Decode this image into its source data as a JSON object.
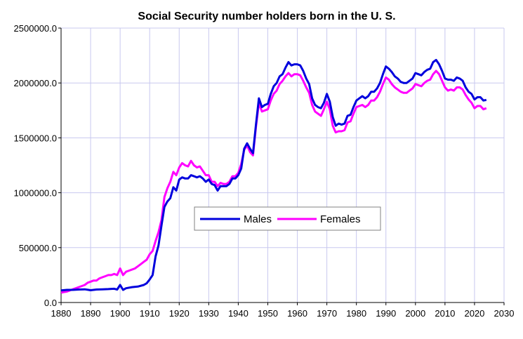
{
  "chart_data": {
    "type": "line",
    "title": "Social Security number holders born in the U. S.",
    "xlabel": "",
    "ylabel": "",
    "xlim": [
      1880,
      2030
    ],
    "ylim": [
      0,
      2500000
    ],
    "xticks": [
      1880,
      1890,
      1900,
      1910,
      1920,
      1930,
      1940,
      1950,
      1960,
      1970,
      1980,
      1990,
      2000,
      2010,
      2020,
      2030
    ],
    "yticks": [
      0,
      500000,
      1000000,
      1500000,
      2000000,
      2500000
    ],
    "ytick_labels": [
      "0.0",
      "500000.0",
      "1000000.0",
      "1500000.0",
      "2000000.0",
      "2500000.0"
    ],
    "grid": true,
    "legend_position": "center-right",
    "series": [
      {
        "name": "Males",
        "color": "#0000dd",
        "points": [
          [
            1880,
            110000
          ],
          [
            1882,
            115000
          ],
          [
            1884,
            115000
          ],
          [
            1886,
            118000
          ],
          [
            1888,
            120000
          ],
          [
            1890,
            112000
          ],
          [
            1892,
            118000
          ],
          [
            1894,
            120000
          ],
          [
            1896,
            122000
          ],
          [
            1898,
            125000
          ],
          [
            1899,
            118000
          ],
          [
            1900,
            160000
          ],
          [
            1901,
            115000
          ],
          [
            1902,
            130000
          ],
          [
            1904,
            140000
          ],
          [
            1906,
            145000
          ],
          [
            1908,
            160000
          ],
          [
            1909,
            175000
          ],
          [
            1910,
            210000
          ],
          [
            1911,
            250000
          ],
          [
            1912,
            420000
          ],
          [
            1913,
            520000
          ],
          [
            1914,
            700000
          ],
          [
            1915,
            870000
          ],
          [
            1916,
            920000
          ],
          [
            1917,
            950000
          ],
          [
            1918,
            1050000
          ],
          [
            1919,
            1020000
          ],
          [
            1920,
            1120000
          ],
          [
            1921,
            1140000
          ],
          [
            1922,
            1130000
          ],
          [
            1923,
            1130000
          ],
          [
            1924,
            1160000
          ],
          [
            1925,
            1150000
          ],
          [
            1926,
            1140000
          ],
          [
            1927,
            1150000
          ],
          [
            1928,
            1130000
          ],
          [
            1929,
            1100000
          ],
          [
            1930,
            1120000
          ],
          [
            1931,
            1080000
          ],
          [
            1932,
            1070000
          ],
          [
            1933,
            1020000
          ],
          [
            1934,
            1060000
          ],
          [
            1935,
            1060000
          ],
          [
            1936,
            1060000
          ],
          [
            1937,
            1080000
          ],
          [
            1938,
            1130000
          ],
          [
            1939,
            1130000
          ],
          [
            1940,
            1160000
          ],
          [
            1941,
            1220000
          ],
          [
            1942,
            1400000
          ],
          [
            1943,
            1450000
          ],
          [
            1944,
            1400000
          ],
          [
            1945,
            1360000
          ],
          [
            1946,
            1620000
          ],
          [
            1947,
            1860000
          ],
          [
            1948,
            1780000
          ],
          [
            1949,
            1800000
          ],
          [
            1950,
            1810000
          ],
          [
            1951,
            1900000
          ],
          [
            1952,
            1970000
          ],
          [
            1953,
            2000000
          ],
          [
            1954,
            2060000
          ],
          [
            1955,
            2080000
          ],
          [
            1956,
            2140000
          ],
          [
            1957,
            2190000
          ],
          [
            1958,
            2160000
          ],
          [
            1959,
            2170000
          ],
          [
            1960,
            2170000
          ],
          [
            1961,
            2160000
          ],
          [
            1962,
            2110000
          ],
          [
            1963,
            2040000
          ],
          [
            1964,
            1990000
          ],
          [
            1965,
            1860000
          ],
          [
            1966,
            1800000
          ],
          [
            1967,
            1780000
          ],
          [
            1968,
            1770000
          ],
          [
            1969,
            1820000
          ],
          [
            1970,
            1900000
          ],
          [
            1971,
            1830000
          ],
          [
            1972,
            1690000
          ],
          [
            1973,
            1610000
          ],
          [
            1974,
            1630000
          ],
          [
            1975,
            1620000
          ],
          [
            1976,
            1630000
          ],
          [
            1977,
            1700000
          ],
          [
            1978,
            1710000
          ],
          [
            1979,
            1780000
          ],
          [
            1980,
            1840000
          ],
          [
            1981,
            1860000
          ],
          [
            1982,
            1880000
          ],
          [
            1983,
            1860000
          ],
          [
            1984,
            1880000
          ],
          [
            1985,
            1920000
          ],
          [
            1986,
            1920000
          ],
          [
            1987,
            1950000
          ],
          [
            1988,
            2000000
          ],
          [
            1989,
            2080000
          ],
          [
            1990,
            2150000
          ],
          [
            1991,
            2130000
          ],
          [
            1992,
            2100000
          ],
          [
            1993,
            2060000
          ],
          [
            1994,
            2040000
          ],
          [
            1995,
            2010000
          ],
          [
            1996,
            2000000
          ],
          [
            1997,
            2000000
          ],
          [
            1998,
            2020000
          ],
          [
            1999,
            2040000
          ],
          [
            2000,
            2090000
          ],
          [
            2001,
            2080000
          ],
          [
            2002,
            2070000
          ],
          [
            2003,
            2100000
          ],
          [
            2004,
            2120000
          ],
          [
            2005,
            2130000
          ],
          [
            2006,
            2190000
          ],
          [
            2007,
            2210000
          ],
          [
            2008,
            2170000
          ],
          [
            2009,
            2110000
          ],
          [
            2010,
            2040000
          ],
          [
            2011,
            2030000
          ],
          [
            2012,
            2030000
          ],
          [
            2013,
            2020000
          ],
          [
            2014,
            2050000
          ],
          [
            2015,
            2040000
          ],
          [
            2016,
            2020000
          ],
          [
            2017,
            1960000
          ],
          [
            2018,
            1920000
          ],
          [
            2019,
            1900000
          ],
          [
            2020,
            1850000
          ],
          [
            2021,
            1870000
          ],
          [
            2022,
            1870000
          ],
          [
            2023,
            1840000
          ],
          [
            2024,
            1845000
          ]
        ]
      },
      {
        "name": "Females",
        "color": "#ff00ff",
        "points": [
          [
            1880,
            90000
          ],
          [
            1882,
            100000
          ],
          [
            1884,
            120000
          ],
          [
            1886,
            140000
          ],
          [
            1888,
            160000
          ],
          [
            1889,
            180000
          ],
          [
            1890,
            190000
          ],
          [
            1891,
            200000
          ],
          [
            1892,
            200000
          ],
          [
            1893,
            220000
          ],
          [
            1894,
            230000
          ],
          [
            1895,
            240000
          ],
          [
            1896,
            250000
          ],
          [
            1897,
            250000
          ],
          [
            1898,
            260000
          ],
          [
            1899,
            250000
          ],
          [
            1900,
            310000
          ],
          [
            1901,
            250000
          ],
          [
            1902,
            280000
          ],
          [
            1903,
            290000
          ],
          [
            1904,
            300000
          ],
          [
            1905,
            310000
          ],
          [
            1906,
            330000
          ],
          [
            1907,
            350000
          ],
          [
            1908,
            370000
          ],
          [
            1909,
            390000
          ],
          [
            1910,
            440000
          ],
          [
            1911,
            470000
          ],
          [
            1912,
            560000
          ],
          [
            1913,
            640000
          ],
          [
            1914,
            750000
          ],
          [
            1915,
            960000
          ],
          [
            1916,
            1040000
          ],
          [
            1917,
            1100000
          ],
          [
            1918,
            1190000
          ],
          [
            1919,
            1160000
          ],
          [
            1920,
            1230000
          ],
          [
            1921,
            1270000
          ],
          [
            1922,
            1250000
          ],
          [
            1923,
            1240000
          ],
          [
            1924,
            1290000
          ],
          [
            1925,
            1250000
          ],
          [
            1926,
            1230000
          ],
          [
            1927,
            1240000
          ],
          [
            1928,
            1200000
          ],
          [
            1929,
            1160000
          ],
          [
            1930,
            1160000
          ],
          [
            1931,
            1100000
          ],
          [
            1932,
            1100000
          ],
          [
            1933,
            1060000
          ],
          [
            1934,
            1090000
          ],
          [
            1935,
            1080000
          ],
          [
            1936,
            1080000
          ],
          [
            1937,
            1100000
          ],
          [
            1938,
            1150000
          ],
          [
            1939,
            1150000
          ],
          [
            1940,
            1180000
          ],
          [
            1941,
            1260000
          ],
          [
            1942,
            1390000
          ],
          [
            1943,
            1430000
          ],
          [
            1944,
            1370000
          ],
          [
            1945,
            1340000
          ],
          [
            1946,
            1600000
          ],
          [
            1947,
            1820000
          ],
          [
            1948,
            1740000
          ],
          [
            1949,
            1750000
          ],
          [
            1950,
            1760000
          ],
          [
            1951,
            1840000
          ],
          [
            1952,
            1900000
          ],
          [
            1953,
            1930000
          ],
          [
            1954,
            1990000
          ],
          [
            1955,
            2020000
          ],
          [
            1956,
            2060000
          ],
          [
            1957,
            2090000
          ],
          [
            1958,
            2060000
          ],
          [
            1959,
            2080000
          ],
          [
            1960,
            2080000
          ],
          [
            1961,
            2070000
          ],
          [
            1962,
            2020000
          ],
          [
            1963,
            1960000
          ],
          [
            1964,
            1910000
          ],
          [
            1965,
            1800000
          ],
          [
            1966,
            1740000
          ],
          [
            1967,
            1720000
          ],
          [
            1968,
            1700000
          ],
          [
            1969,
            1760000
          ],
          [
            1970,
            1830000
          ],
          [
            1971,
            1760000
          ],
          [
            1972,
            1610000
          ],
          [
            1973,
            1550000
          ],
          [
            1974,
            1560000
          ],
          [
            1975,
            1560000
          ],
          [
            1976,
            1570000
          ],
          [
            1977,
            1640000
          ],
          [
            1978,
            1650000
          ],
          [
            1979,
            1720000
          ],
          [
            1980,
            1780000
          ],
          [
            1981,
            1790000
          ],
          [
            1982,
            1800000
          ],
          [
            1983,
            1780000
          ],
          [
            1984,
            1800000
          ],
          [
            1985,
            1840000
          ],
          [
            1986,
            1840000
          ],
          [
            1987,
            1870000
          ],
          [
            1988,
            1920000
          ],
          [
            1989,
            1990000
          ],
          [
            1990,
            2050000
          ],
          [
            1991,
            2030000
          ],
          [
            1992,
            1990000
          ],
          [
            1993,
            1960000
          ],
          [
            1994,
            1940000
          ],
          [
            1995,
            1920000
          ],
          [
            1996,
            1910000
          ],
          [
            1997,
            1910000
          ],
          [
            1998,
            1930000
          ],
          [
            1999,
            1950000
          ],
          [
            2000,
            1990000
          ],
          [
            2001,
            1980000
          ],
          [
            2002,
            1970000
          ],
          [
            2003,
            2000000
          ],
          [
            2004,
            2020000
          ],
          [
            2005,
            2030000
          ],
          [
            2006,
            2080000
          ],
          [
            2007,
            2110000
          ],
          [
            2008,
            2080000
          ],
          [
            2009,
            2020000
          ],
          [
            2010,
            1960000
          ],
          [
            2011,
            1930000
          ],
          [
            2012,
            1940000
          ],
          [
            2013,
            1930000
          ],
          [
            2014,
            1960000
          ],
          [
            2015,
            1960000
          ],
          [
            2016,
            1940000
          ],
          [
            2017,
            1890000
          ],
          [
            2018,
            1850000
          ],
          [
            2019,
            1820000
          ],
          [
            2020,
            1770000
          ],
          [
            2021,
            1790000
          ],
          [
            2022,
            1790000
          ],
          [
            2023,
            1760000
          ],
          [
            2024,
            1770000
          ]
        ]
      }
    ]
  }
}
